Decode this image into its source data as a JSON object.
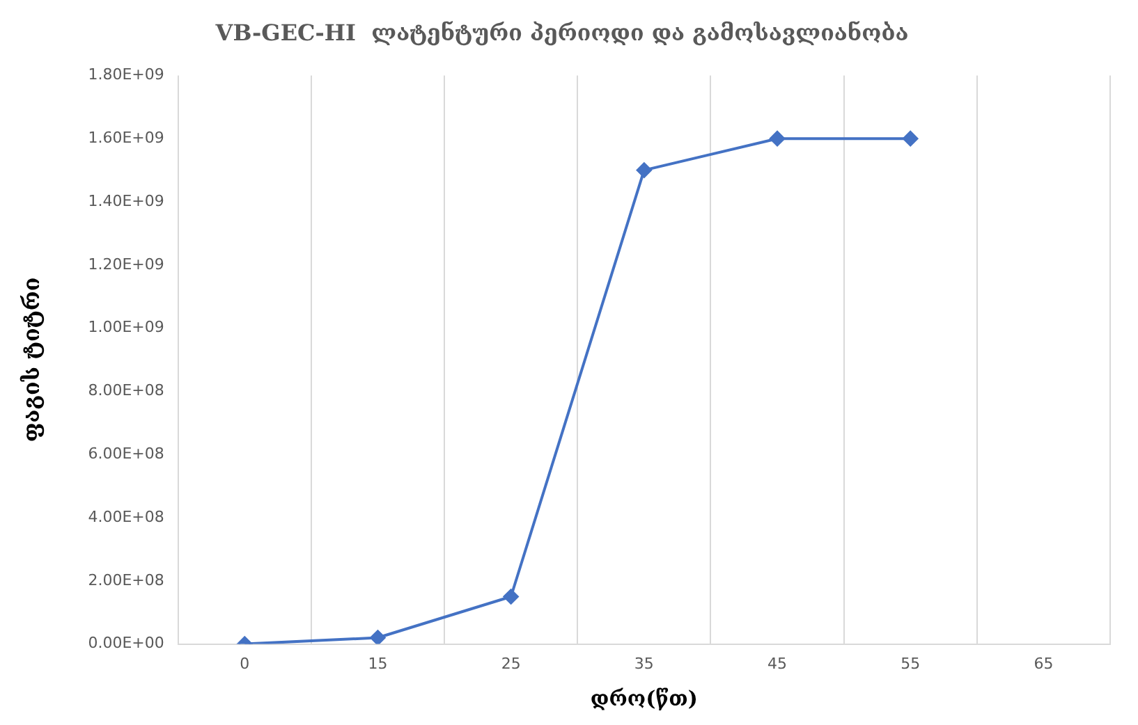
{
  "chart_data": {
    "type": "line",
    "title": "VB-GEC-HI  ლატენტური პერიოდი და გამოსავლიანობა",
    "xlabel": "დრო(წთ)",
    "ylabel": "ფაგის ტიტრი",
    "categories": [
      "0",
      "15",
      "25",
      "35",
      "45",
      "55",
      "65"
    ],
    "series": [
      {
        "color": "#4472c4",
        "values": [
          0,
          20000000,
          150000000,
          1500000000,
          1600000000,
          1600000000,
          null
        ]
      }
    ],
    "ylim": [
      0,
      1800000000
    ],
    "yticks": [
      {
        "value": 0,
        "label": "0.00E+00"
      },
      {
        "value": 200000000,
        "label": "2.00E+08"
      },
      {
        "value": 400000000,
        "label": "4.00E+08"
      },
      {
        "value": 600000000,
        "label": "6.00E+08"
      },
      {
        "value": 800000000,
        "label": "8.00E+08"
      },
      {
        "value": 1000000000,
        "label": "1.00E+09"
      },
      {
        "value": 1200000000,
        "label": "1.20E+09"
      },
      {
        "value": 1400000000,
        "label": "1.40E+09"
      },
      {
        "value": 1600000000,
        "label": "1.60E+09"
      },
      {
        "value": 1800000000,
        "label": "1.80E+09"
      }
    ],
    "grid": "x",
    "marker": "diamond",
    "line_style": "solid",
    "legend": false
  }
}
